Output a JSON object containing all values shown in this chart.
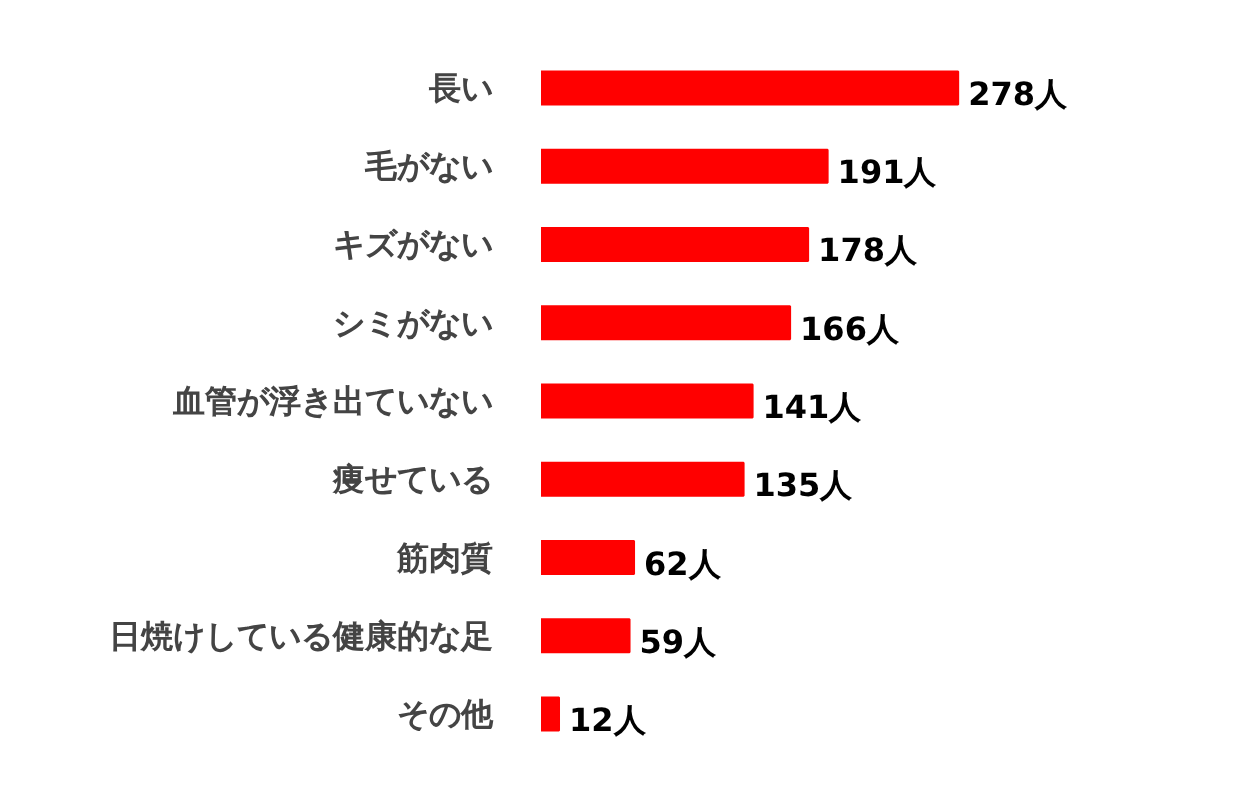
{
  "chart_data": {
    "type": "bar",
    "orientation": "horizontal",
    "categories": [
      "長い",
      "毛がない",
      "キズがない",
      "シミがない",
      "血管が浮き出ていない",
      "痩せている",
      "筋肉質",
      "日焼けしている健康的な足",
      "その他"
    ],
    "values": [
      278,
      191,
      178,
      166,
      141,
      135,
      62,
      59,
      12
    ],
    "value_labels": [
      "278人",
      "191人",
      "178人",
      "166人",
      "141人",
      "135人",
      "62人",
      "59人",
      "12人"
    ],
    "color": "#ff0000",
    "grid": false
  }
}
